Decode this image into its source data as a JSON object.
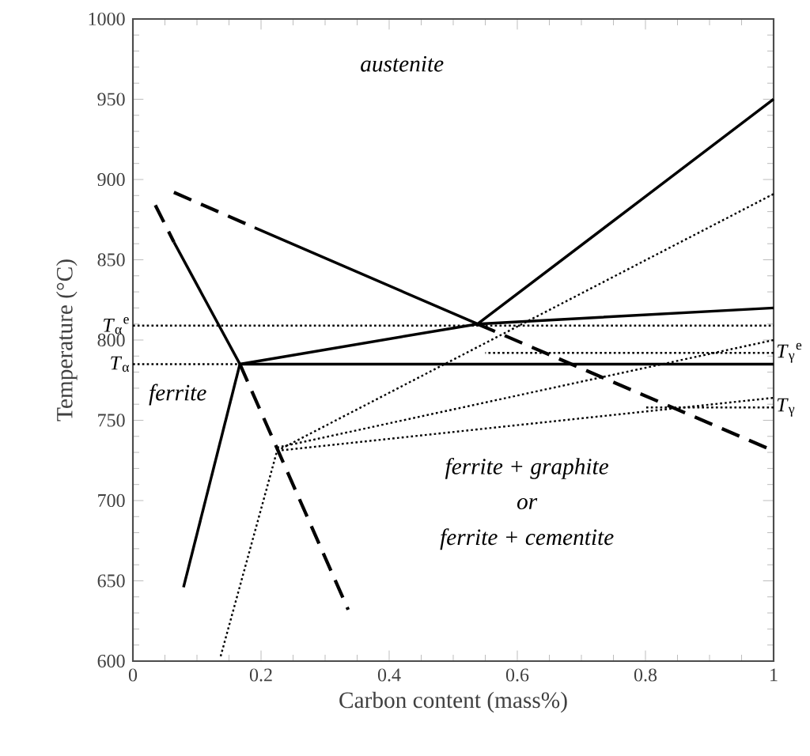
{
  "chart_data": {
    "type": "line",
    "xlabel": "Carbon content (mass%)",
    "ylabel": "Temperature (°C)",
    "xlim": [
      0,
      1
    ],
    "xticks": [
      0,
      0.2,
      0.4,
      0.6,
      0.8,
      1
    ],
    "ylim": [
      600,
      1000
    ],
    "yticks": [
      600,
      650,
      700,
      750,
      800,
      850,
      900,
      950,
      1000
    ],
    "series": [
      {
        "color": "#000000",
        "line_style": "dashed",
        "x": [
          0.064,
          0.19
        ],
        "values": [
          892,
          870
        ]
      },
      {
        "color": "#000000",
        "line_style": "solid",
        "x": [
          0.19,
          0.538,
          1
        ],
        "values": [
          870,
          810,
          950
        ]
      },
      {
        "color": "#000000",
        "line_style": "solid",
        "x": [
          0.167,
          0.538,
          1
        ],
        "values": [
          785,
          810,
          820
        ]
      },
      {
        "color": "#000000",
        "line_style": "solid",
        "x": [
          0.167,
          1
        ],
        "values": [
          785,
          785
        ]
      },
      {
        "color": "#000000",
        "line_style": "dashed",
        "x": [
          0.035,
          0.064
        ],
        "values": [
          884,
          861
        ]
      },
      {
        "color": "#000000",
        "line_style": "solid",
        "x": [
          0.064,
          0.167
        ],
        "values": [
          861,
          785
        ]
      },
      {
        "color": "#000000",
        "line_style": "dashed",
        "x": [
          0.167,
          0.336
        ],
        "values": [
          785,
          632
        ]
      },
      {
        "color": "#000000",
        "line_style": "solid",
        "x": [
          0.079,
          0.167
        ],
        "values": [
          646,
          785
        ]
      },
      {
        "color": "#000000",
        "line_style": "dashed",
        "x": [
          0.538,
          1
        ],
        "values": [
          810,
          731
        ]
      },
      {
        "color": "#000000",
        "line_style": "dotted",
        "x": [
          0.137,
          0.225
        ],
        "values": [
          603,
          731
        ]
      },
      {
        "color": "#000000",
        "line_style": "dotted",
        "x": [
          0.225,
          1
        ],
        "values": [
          731,
          891
        ]
      },
      {
        "color": "#000000",
        "line_style": "dotted",
        "x": [
          0.225,
          1
        ],
        "values": [
          733,
          800
        ]
      },
      {
        "color": "#000000",
        "line_style": "dotted",
        "x": [
          0.225,
          1
        ],
        "values": [
          731,
          764
        ]
      },
      {
        "name": "*T*$_{α}$$^{e}$",
        "color": "#000000",
        "line_style": "dotted",
        "x": [
          0,
          1
        ],
        "values": [
          809,
          809
        ]
      },
      {
        "name": "*T*$_{α}$",
        "color": "#000000",
        "line_style": "dotted",
        "x": [
          0,
          0.167
        ],
        "values": [
          785,
          785
        ]
      },
      {
        "name": "*T*$_{γ}$$^{e}$",
        "color": "#000000",
        "line_style": "dotted",
        "x": [
          1,
          0.55
        ],
        "values": [
          792,
          792
        ]
      },
      {
        "name": "*T*$_{γ}$",
        "color": "#000000",
        "line_style": "dotted",
        "x": [
          1,
          0.8
        ],
        "values": [
          758,
          758
        ]
      }
    ],
    "annotations": [
      "*austenite*",
      "*ferrite*",
      "*ferrite + graphite*",
      "*or*",
      "*ferrite + cementite*"
    ]
  }
}
